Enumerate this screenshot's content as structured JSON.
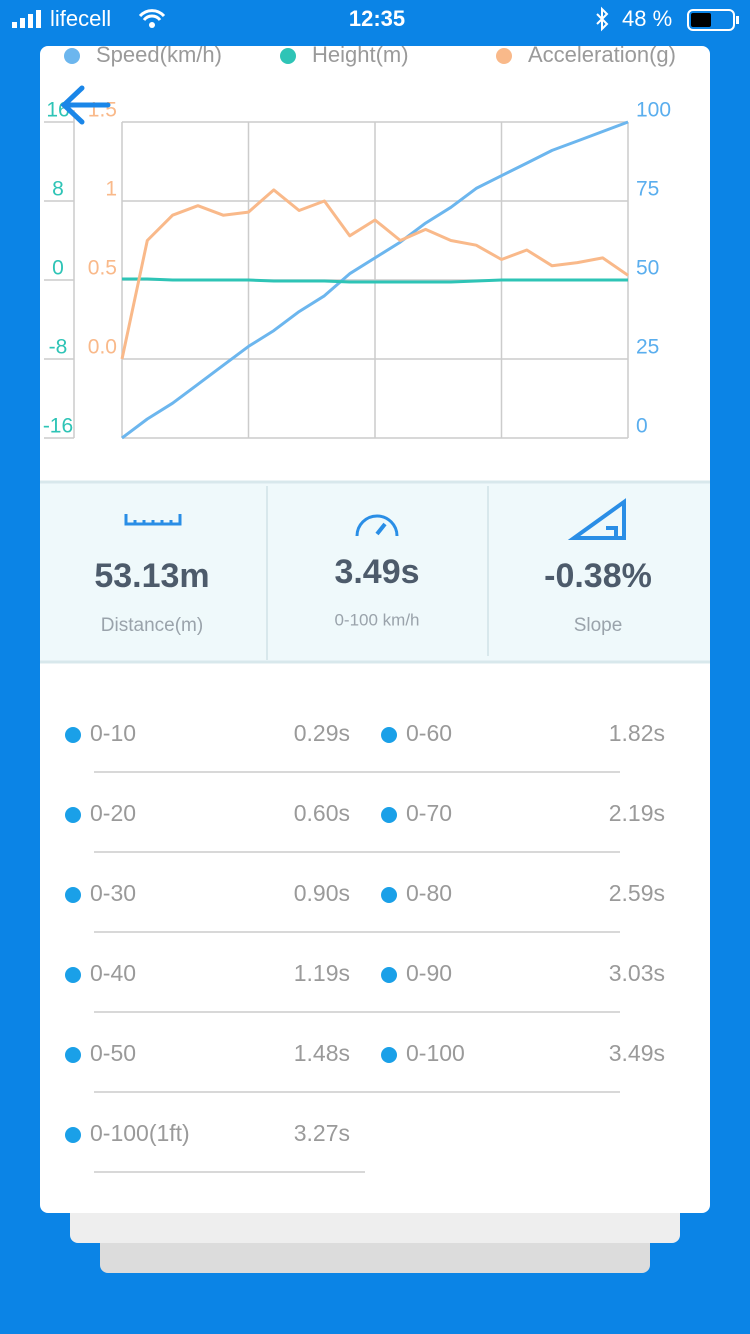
{
  "status_bar": {
    "carrier": "lifecell",
    "time": "12:35",
    "battery": "48 %"
  },
  "chart_data": {
    "type": "line",
    "series": [
      {
        "name": "Speed(km/h)",
        "color": "#6cb6ee",
        "axis": "y2",
        "values": [
          0,
          6,
          11,
          17,
          23,
          29,
          34,
          40,
          45,
          52,
          57,
          62,
          68,
          73,
          79,
          83,
          87,
          91,
          94,
          97,
          100
        ]
      },
      {
        "name": "Height(m)",
        "color": "#2ec4b6",
        "values": [
          0.1,
          0.1,
          0,
          0,
          0,
          0,
          -0.1,
          -0.1,
          -0.1,
          -0.2,
          -0.2,
          -0.2,
          -0.2,
          -0.2,
          -0.1,
          0,
          0,
          0,
          0,
          0,
          0
        ]
      },
      {
        "name": "Acceleration(g)",
        "color": "#f9b98a",
        "axis": "y3",
        "values": [
          0,
          0.75,
          0.91,
          0.97,
          0.91,
          0.93,
          1.07,
          0.94,
          1.0,
          0.78,
          0.88,
          0.75,
          0.82,
          0.75,
          0.72,
          0.63,
          0.69,
          0.59,
          0.61,
          0.64,
          0.53
        ]
      }
    ],
    "ylim": [
      -16,
      16
    ],
    "yticks": [
      -16,
      -8,
      0,
      8,
      16
    ],
    "y2lim": [
      0,
      100
    ],
    "y2ticks": [
      0,
      25,
      50,
      75,
      100
    ],
    "y3lim": [
      -0.5,
      1.5
    ],
    "y3ticks": [
      {
        "value": 0,
        "label": "0.0"
      },
      0.5,
      1,
      1.5
    ],
    "grid": true
  },
  "stats": [
    {
      "value": "53.13m",
      "label": "Distance(m)"
    },
    {
      "value": "3.49s",
      "label": "0-100 km/h"
    },
    {
      "value": "-0.38%",
      "label": "Slope"
    }
  ],
  "splits": [
    {
      "label": "0-10",
      "time": "0.29s"
    },
    {
      "label": "0-60",
      "time": "1.82s"
    },
    {
      "label": "0-20",
      "time": "0.60s"
    },
    {
      "label": "0-70",
      "time": "2.19s"
    },
    {
      "label": "0-30",
      "time": "0.90s"
    },
    {
      "label": "0-80",
      "time": "2.59s"
    },
    {
      "label": "0-40",
      "time": "1.19s"
    },
    {
      "label": "0-90",
      "time": "3.03s"
    },
    {
      "label": "0-50",
      "time": "1.48s"
    },
    {
      "label": "0-100",
      "time": "3.49s"
    },
    {
      "label": "0-100(1ft)",
      "time": "3.27s"
    }
  ]
}
